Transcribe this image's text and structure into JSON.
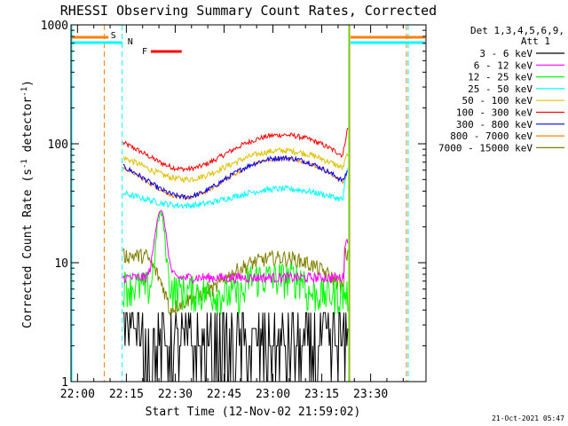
{
  "chart_data": {
    "type": "line",
    "title": "RHESSI Observing Summary Count Rates, Corrected",
    "xlabel": "Start Time (12-Nov-02 21:59:02)",
    "ylabel": "Corrected Count Rate (s",
    "ylabel_sup1": "-1",
    "ylabel_mid": " detector",
    "ylabel_sup2": "-1",
    "ylabel_end": ")",
    "y_scale": "log",
    "ylim": [
      1,
      1000
    ],
    "xlim_minutes": [
      -2,
      107
    ],
    "x_ticks": [
      {
        "t": 0,
        "label": "22:00"
      },
      {
        "t": 15,
        "label": "22:15"
      },
      {
        "t": 30,
        "label": "22:30"
      },
      {
        "t": 45,
        "label": "22:45"
      },
      {
        "t": 60,
        "label": "23:00"
      },
      {
        "t": 75,
        "label": "23:15"
      },
      {
        "t": 90,
        "label": "23:30"
      }
    ],
    "y_ticks": [
      {
        "v": 1,
        "label": "1"
      },
      {
        "v": 10,
        "label": "10"
      },
      {
        "v": 100,
        "label": "100"
      },
      {
        "v": 1000,
        "label": "1000"
      }
    ],
    "legend_header": [
      "Det 1,3,4,5,6,9,",
      "Att 1"
    ],
    "series": [
      {
        "name": "3 - 6 keV",
        "color": "#000000"
      },
      {
        "name": "6 - 12 keV",
        "color": "#ff00ff"
      },
      {
        "name": "12 - 25 keV",
        "color": "#00ff00"
      },
      {
        "name": "25 - 50 keV",
        "color": "#00ffff"
      },
      {
        "name": "50 - 100 keV",
        "color": "#e0c000"
      },
      {
        "name": "100 - 300 keV",
        "color": "#ff0000"
      },
      {
        "name": "300 - 800 keV",
        "color": "#0000ff"
      },
      {
        "name": "800 - 7000 keV",
        "color": "#ff8000"
      },
      {
        "name": "7000 - 15000 keV",
        "color": "#808000"
      }
    ],
    "annotations": {
      "S": {
        "label": "S",
        "color": "#ff8000"
      },
      "N": {
        "label": "N",
        "color": "#00ffff"
      },
      "F": {
        "label": "F",
        "color": "#ff0000"
      }
    }
  },
  "footer_date": "21-Oct-2021 05:47"
}
